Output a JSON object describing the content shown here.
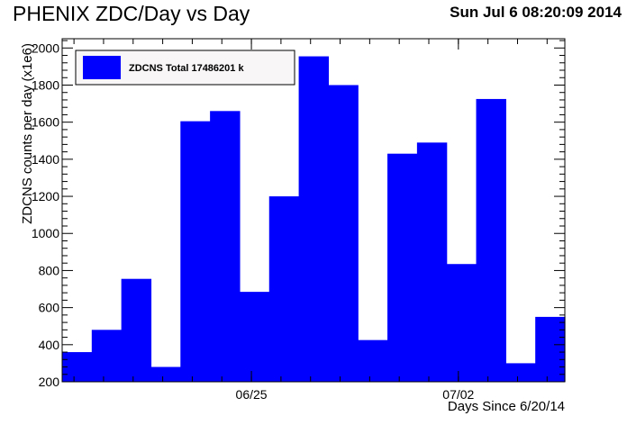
{
  "header": {
    "title": "PHENIX ZDC/Day vs Day",
    "timestamp": "Sun Jul  6 08:20:09 2014"
  },
  "colors": {
    "bar": "#0000ff",
    "frame": "#000000",
    "legend_bg": "#f8f6f6"
  },
  "chart_data": {
    "type": "bar",
    "title": "PHENIX ZDC/Day vs Day",
    "xlabel": "Days Since 6/20/14",
    "ylabel": "ZDCNS counts per day (x1e6)",
    "bins": [
      {
        "start": 1,
        "end": 2,
        "value": 360
      },
      {
        "start": 2,
        "end": 3,
        "value": 480
      },
      {
        "start": 3,
        "end": 4,
        "value": 755
      },
      {
        "start": 4,
        "end": 5,
        "value": 280
      },
      {
        "start": 5,
        "end": 6,
        "value": 1605
      },
      {
        "start": 6,
        "end": 7,
        "value": 1660
      },
      {
        "start": 7,
        "end": 8,
        "value": 685
      },
      {
        "start": 8,
        "end": 9,
        "value": 1200
      },
      {
        "start": 9,
        "end": 10,
        "value": 1955
      },
      {
        "start": 10,
        "end": 11,
        "value": 1800
      },
      {
        "start": 11,
        "end": 12,
        "value": 425
      },
      {
        "start": 12,
        "end": 13,
        "value": 1430
      },
      {
        "start": 13,
        "end": 14,
        "value": 1490
      },
      {
        "start": 14,
        "end": 15,
        "value": 835
      },
      {
        "start": 15,
        "end": 16,
        "value": 1725
      },
      {
        "start": 16,
        "end": 17,
        "value": 300
      },
      {
        "start": 17,
        "end": 18,
        "value": 550
      }
    ],
    "xlim": [
      1,
      18
    ],
    "ylim": [
      200,
      2050
    ],
    "yticks": [
      200,
      400,
      600,
      800,
      1000,
      1200,
      1400,
      1600,
      1800,
      2000
    ],
    "xticks": [
      {
        "value": 7.4,
        "label": "06/25"
      },
      {
        "value": 14.4,
        "label": "07/02"
      }
    ],
    "legend": {
      "entries": [
        {
          "label": "ZDCNS Total 17486201 k"
        }
      ],
      "position": "top-left"
    },
    "grid": false
  }
}
